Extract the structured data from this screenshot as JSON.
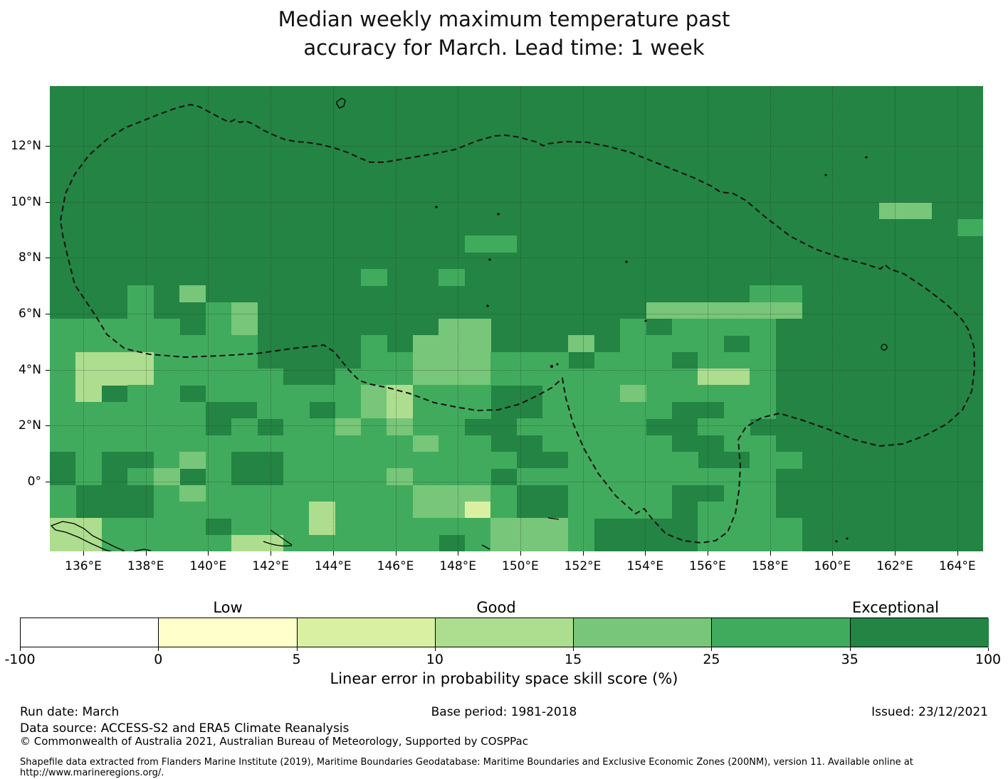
{
  "title": {
    "line1": "Median weekly maximum temperature past",
    "line2": "accuracy for March. Lead time: 1 week"
  },
  "colorbar": {
    "category_labels": [
      "Low",
      "Good",
      "Exceptional"
    ],
    "tick_labels": [
      "-100",
      "0",
      "5",
      "10",
      "15",
      "25",
      "35",
      "100"
    ],
    "segment_colors": [
      "#ffffff",
      "#ffffcc",
      "#d9f0a3",
      "#addd8e",
      "#78c679",
      "#41ab5d",
      "#238443"
    ],
    "axis_label": "Linear error in probability space skill score (%)"
  },
  "footer": {
    "run_date": "Run date: March",
    "base_period": "Base period: 1981-2018",
    "issued": "Issued: 23/12/2021",
    "data_source": "Data source: ACCESS-S2 and ERA5 Climate Reanalysis",
    "copyright": "© Commonwealth of Australia 2021, Australian Bureau of Meteorology, Supported by COSPPac",
    "shapefile": "Shapefile data extracted from Flanders Marine Institute (2019), Maritime Boundaries Geodatabase: Maritime Boundaries and Exclusive Economic Zones (200NM), version 11. Available online at http://www.marineregions.org/."
  },
  "chart_data": {
    "type": "heatmap",
    "title": "Median weekly maximum temperature past accuracy for March. Lead time: 1 week",
    "xlabel": "",
    "ylabel": "",
    "x_axis": {
      "ticks": [
        {
          "value": 136,
          "label": "136°E"
        },
        {
          "value": 138,
          "label": "138°E"
        },
        {
          "value": 140,
          "label": "140°E"
        },
        {
          "value": 142,
          "label": "142°E"
        },
        {
          "value": 144,
          "label": "144°E"
        },
        {
          "value": 146,
          "label": "146°E"
        },
        {
          "value": 148,
          "label": "148°E"
        },
        {
          "value": 150,
          "label": "150°E"
        },
        {
          "value": 152,
          "label": "152°E"
        },
        {
          "value": 154,
          "label": "154°E"
        },
        {
          "value": 156,
          "label": "156°E"
        },
        {
          "value": 158,
          "label": "158°E"
        },
        {
          "value": 160,
          "label": "160°E"
        },
        {
          "value": 162,
          "label": "162°E"
        },
        {
          "value": 164,
          "label": "164°E"
        }
      ]
    },
    "y_axis": {
      "ticks": [
        {
          "value": 12,
          "label": "12°N"
        },
        {
          "value": 10,
          "label": "10°N"
        },
        {
          "value": 8,
          "label": "8°N"
        },
        {
          "value": 6,
          "label": "6°N"
        },
        {
          "value": 4,
          "label": "4°N"
        },
        {
          "value": 2,
          "label": "2°N"
        },
        {
          "value": 0,
          "label": "0°"
        }
      ]
    },
    "lon_range": [
      134.9,
      164.8
    ],
    "lat_range": [
      -2.5,
      14.1
    ],
    "legend": {
      "bins": [
        -100,
        0,
        5,
        10,
        15,
        25,
        35,
        100
      ],
      "bin_names": [
        "none",
        "Low (0-5)",
        "5-10",
        "10-15",
        "Good (15-25)",
        "25-35",
        "Exceptional (35-100)"
      ],
      "bin_colors": [
        "#ffffff",
        "#ffffcc",
        "#d9f0a3",
        "#addd8e",
        "#78c679",
        "#41ab5d",
        "#238443"
      ],
      "position": "bottom"
    },
    "grid_on": true,
    "grid_note": "rows are ~0.55 deg latitude bands from north (14.1N) to south (-2.5S); cols are ~0.83 deg longitude bands from 134.9E; char = color bin index 0-6",
    "grid": [
      "666666666666666666666666666666666666",
      "666666666666666666666666666666666666",
      "666666666666666666666666666666666666",
      "666666666666666666666666666666666666",
      "666666666666666666666666666666666666",
      "666666666666666666666666666666666666",
      "666666666666666666666666666666666666",
      "666666666666666666666666666666664466",
      "666666666666666666666666666666666665",
      "666666666666666655666666666666666666",
      "666666666666666666666666666666666666",
      "666666666666566566666666666666666666",
      "666564666666666666666666666556666666",
      "666566546666666666666664444446666666",
      "555556546666666446666656555566666666",
      "555555556666564446664655556566666666",
      "533355556666554445556555655566666666",
      "533355555665554445555555533566666666",
      "536556555555435556655545555566666666",
      "555555665565435556655555665566666666",
      "555555656554545566555556655666666666",
      "555555555555554556655555665566666666",
      "656654566555555555665555566556666666",
      "656546566555545556555555555566666666",
      "566654555555554445665555665566666666",
      "566655555535554425665555655566666666",
      "335555655535555554445666655556666666",
      "335555533555555654445666655556666666"
    ]
  }
}
